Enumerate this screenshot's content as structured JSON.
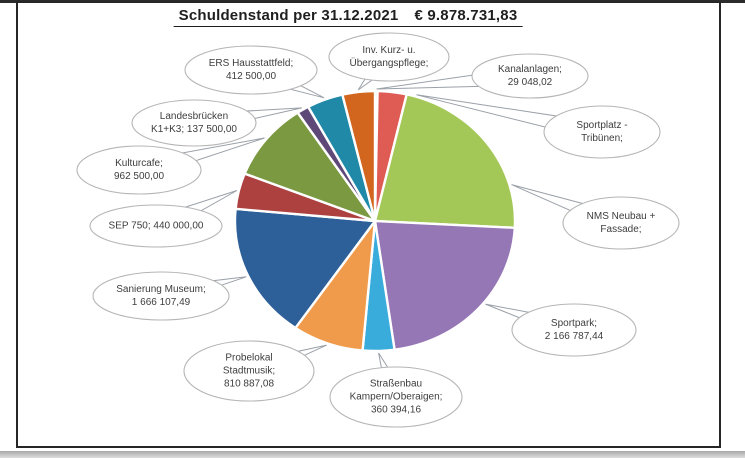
{
  "chart_data": {
    "type": "pie",
    "title": "Schuldenstand per 31.12.2021",
    "total_text": "€ 9.878.731,83",
    "total_value": 9878731.83,
    "currency": "EUR",
    "number_format": "de-AT",
    "start_angle_deg": 0,
    "direction": "clockwise",
    "legend": "none",
    "labels_style": "oval-callouts-with-leader-lines",
    "slices": [
      {
        "id": "kanalanlagen",
        "label": "Kanalanlagen",
        "value": 29048.02,
        "value_shown": true,
        "estimated": false,
        "percent": 0.29,
        "callout_text": "Kanalanlagen;\n29 048,02",
        "color": "#4a7ebb"
      },
      {
        "id": "sportplatz",
        "label": "Sportplatz - Tribünen",
        "value": 330000,
        "value_shown": false,
        "estimated": true,
        "percent": 3.34,
        "callout_text": "Sportplatz -\nTribünen;",
        "color": "#df5c55"
      },
      {
        "id": "nms",
        "label": "NMS Neubau + Fassade",
        "value": 2193000,
        "value_shown": false,
        "estimated": true,
        "percent": 22.2,
        "callout_text": "NMS Neubau +\nFassade;",
        "color": "#a4c857"
      },
      {
        "id": "sportpark",
        "label": "Sportpark",
        "value": 2166787.44,
        "value_shown": true,
        "estimated": false,
        "percent": 21.93,
        "callout_text": "Sportpark;\n2 166 787,44",
        "color": "#9577b5"
      },
      {
        "id": "strassenbau",
        "label": "Straßenbau Kampern/Oberaigen",
        "value": 360394.16,
        "value_shown": true,
        "estimated": false,
        "percent": 3.65,
        "callout_text": "Straßenbau\nKampern/Oberaigen;\n360 394,16",
        "color": "#3aacdb"
      },
      {
        "id": "probelokal",
        "label": "Probelokal Stadtmusik",
        "value": 810887.08,
        "value_shown": true,
        "estimated": false,
        "percent": 8.21,
        "callout_text": "Probelokal\nStadtmusik;\n810 887,08",
        "color": "#f09b4c"
      },
      {
        "id": "museum",
        "label": "Sanierung Museum",
        "value": 1666107.49,
        "value_shown": true,
        "estimated": false,
        "percent": 16.87,
        "callout_text": "Sanierung Museum;\n1 666 107,49",
        "color": "#2d5f99"
      },
      {
        "id": "sep750",
        "label": "SEP 750",
        "value": 440000.0,
        "value_shown": true,
        "estimated": false,
        "percent": 4.45,
        "callout_text": "SEP 750; 440 000,00",
        "color": "#ac4140"
      },
      {
        "id": "kulturcafe",
        "label": "Kulturcafe",
        "value": 962500.0,
        "value_shown": true,
        "estimated": false,
        "percent": 9.74,
        "callout_text": "Kulturcafe;\n962 500,00",
        "color": "#7a9940"
      },
      {
        "id": "landesbruecken",
        "label": "Landesbrücken K1+K3",
        "value": 137500.0,
        "value_shown": true,
        "estimated": false,
        "percent": 1.39,
        "callout_text": "Landesbrücken\nK1+K3; 137 500,00",
        "color": "#5e4878"
      },
      {
        "id": "ers",
        "label": "ERS Hausstattfeld",
        "value": 412500.0,
        "value_shown": true,
        "estimated": false,
        "percent": 4.18,
        "callout_text": "ERS Hausstattfeld;\n412 500,00",
        "color": "#2089a8"
      },
      {
        "id": "invkurz",
        "label": "Inv. Kurz- u. Übergangspflege",
        "value": 370000,
        "value_shown": false,
        "estimated": true,
        "percent": 3.75,
        "callout_text": "Inv. Kurz- u.\nÜbergangspflege;",
        "color": "#d2661e"
      }
    ]
  },
  "colors": {
    "slice_stroke": "#ffffff",
    "leader_line": "#9aa0a8",
    "callout_border": "#b5b5b5",
    "frame": "#262626",
    "title_text": "#1f1f1f",
    "label_text": "#3d3d3d"
  }
}
